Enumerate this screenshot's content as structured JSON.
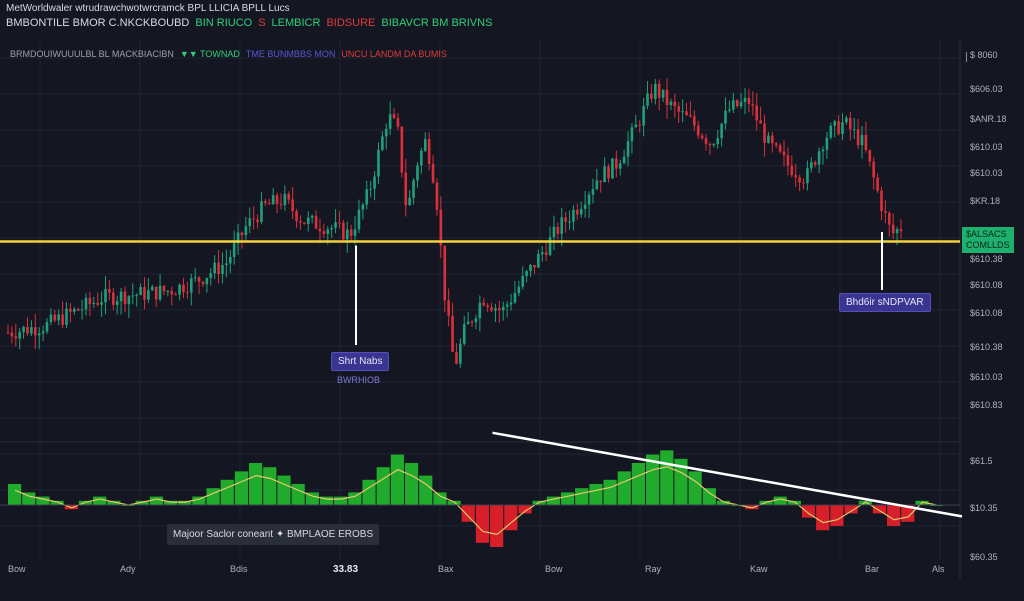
{
  "header": {
    "title": "MetWorldwaler wtrudrawchwotwrcramck BPL LLICIA BPLL Lucs",
    "subtitle_segments": [
      {
        "text": "BMBONTILE BMOR C.NKCKBOUBD",
        "color": "#d8dbe3"
      },
      {
        "text": "BIN RIUCO",
        "color": "#2fd07a"
      },
      {
        "text": "S",
        "color": "#e23b3b"
      },
      {
        "text": "LEMBICR",
        "color": "#2fd07a"
      },
      {
        "text": "BIDSURE",
        "color": "#e23b3b"
      },
      {
        "text": "BIBAVCR BM BRIVNS",
        "color": "#2fd07a"
      }
    ],
    "indicator_segments": [
      {
        "text": "BRMDOUIWUUULBL BL MACKBIACIBN",
        "color": "#9aa0ad"
      },
      {
        "text": "▼▼ TOWNAD",
        "color": "#2fd07a"
      },
      {
        "text": "TME BUNMBBS MON",
        "color": "#5a56d6"
      },
      {
        "text": "UNCU LANDM DA BUMIS",
        "color": "#e23b3b"
      }
    ]
  },
  "y_axis_labels": [
    "$ 8060",
    "$606.03",
    "$ANR.18",
    "$610.03",
    "$610.03",
    "$KR.18",
    "$610.38",
    "$610.08",
    "$610.08",
    "$610.38",
    "$610.03",
    "$610.83",
    "$61.5",
    "$10.35",
    "$60.35"
  ],
  "x_axis_labels": [
    {
      "text": "Bow",
      "emph": false
    },
    {
      "text": "Ady",
      "emph": false
    },
    {
      "text": "Bdis",
      "emph": false
    },
    {
      "text": "33.83",
      "emph": true
    },
    {
      "text": "Bax",
      "emph": false
    },
    {
      "text": "Bow",
      "emph": false
    },
    {
      "text": "Ray",
      "emph": false
    },
    {
      "text": "Kaw",
      "emph": false
    },
    {
      "text": "Bar",
      "emph": false
    },
    {
      "text": "Als",
      "emph": false
    }
  ],
  "annotations": {
    "left_callout": "Shrt Nabs",
    "left_callout_sub": "BWRHIOB",
    "right_callout": "Bhd6ir sNDPVAR",
    "price_tag_line1": "$ALSACS",
    "price_tag_line2": "COMLLDS",
    "oscillator_box": "Majoor Saclor coneant ✦ BMPLAOE EROBS"
  },
  "colors": {
    "background": "#141722",
    "bull": "#1fa07a",
    "bear": "#d9303c",
    "support_line": "#f1d23b",
    "histogram_positive": "#22b32e",
    "histogram_negative": "#e0202a",
    "trend_line": "#ffffff",
    "callout_bg": "#3a3590"
  },
  "chart_data": {
    "type": "candlestick",
    "price_series": [
      {
        "x": 0.0,
        "y": 610.3
      },
      {
        "x": 0.04,
        "y": 610.32
      },
      {
        "x": 0.07,
        "y": 610.36
      },
      {
        "x": 0.1,
        "y": 610.4
      },
      {
        "x": 0.14,
        "y": 610.41
      },
      {
        "x": 0.17,
        "y": 610.42
      },
      {
        "x": 0.2,
        "y": 610.45
      },
      {
        "x": 0.23,
        "y": 610.5
      },
      {
        "x": 0.25,
        "y": 610.6
      },
      {
        "x": 0.27,
        "y": 610.66
      },
      {
        "x": 0.29,
        "y": 610.68
      },
      {
        "x": 0.31,
        "y": 610.62
      },
      {
        "x": 0.34,
        "y": 610.6
      },
      {
        "x": 0.36,
        "y": 610.58
      },
      {
        "x": 0.38,
        "y": 610.7
      },
      {
        "x": 0.4,
        "y": 610.92
      },
      {
        "x": 0.41,
        "y": 610.88
      },
      {
        "x": 0.42,
        "y": 610.64
      },
      {
        "x": 0.43,
        "y": 610.78
      },
      {
        "x": 0.44,
        "y": 610.85
      },
      {
        "x": 0.45,
        "y": 610.72
      },
      {
        "x": 0.46,
        "y": 610.4
      },
      {
        "x": 0.47,
        "y": 610.2
      },
      {
        "x": 0.48,
        "y": 610.3
      },
      {
        "x": 0.5,
        "y": 610.4
      },
      {
        "x": 0.52,
        "y": 610.36
      },
      {
        "x": 0.54,
        "y": 610.44
      },
      {
        "x": 0.56,
        "y": 610.52
      },
      {
        "x": 0.58,
        "y": 610.6
      },
      {
        "x": 0.6,
        "y": 610.66
      },
      {
        "x": 0.62,
        "y": 610.74
      },
      {
        "x": 0.64,
        "y": 610.78
      },
      {
        "x": 0.66,
        "y": 610.88
      },
      {
        "x": 0.68,
        "y": 611.0
      },
      {
        "x": 0.7,
        "y": 610.94
      },
      {
        "x": 0.72,
        "y": 610.9
      },
      {
        "x": 0.74,
        "y": 610.84
      },
      {
        "x": 0.76,
        "y": 610.94
      },
      {
        "x": 0.78,
        "y": 610.96
      },
      {
        "x": 0.8,
        "y": 610.84
      },
      {
        "x": 0.82,
        "y": 610.78
      },
      {
        "x": 0.84,
        "y": 610.74
      },
      {
        "x": 0.86,
        "y": 610.86
      },
      {
        "x": 0.88,
        "y": 610.9
      },
      {
        "x": 0.9,
        "y": 610.84
      },
      {
        "x": 0.92,
        "y": 610.66
      },
      {
        "x": 0.93,
        "y": 610.58
      },
      {
        "x": 0.94,
        "y": 610.6
      }
    ],
    "support_level": 610.56,
    "oscillator": {
      "histogram": [
        0.5,
        0.3,
        0.2,
        0.1,
        -0.1,
        0.1,
        0.2,
        0.1,
        0.0,
        0.1,
        0.2,
        0.1,
        0.1,
        0.2,
        0.4,
        0.6,
        0.8,
        1.0,
        0.9,
        0.7,
        0.5,
        0.3,
        0.2,
        0.2,
        0.3,
        0.6,
        0.9,
        1.2,
        1.0,
        0.7,
        0.3,
        0.1,
        -0.4,
        -0.9,
        -1.0,
        -0.6,
        -0.2,
        0.1,
        0.2,
        0.3,
        0.4,
        0.5,
        0.6,
        0.8,
        1.0,
        1.2,
        1.3,
        1.1,
        0.8,
        0.4,
        0.1,
        0.0,
        -0.1,
        0.1,
        0.2,
        0.1,
        -0.3,
        -0.6,
        -0.5,
        -0.2,
        0.1,
        -0.2,
        -0.5,
        -0.4,
        0.1,
        0.0
      ],
      "trend_line": [
        {
          "x": 0.51,
          "y": 1.9
        },
        {
          "x": 0.94,
          "y": -0.3
        }
      ],
      "range": [
        -1.2,
        1.6
      ]
    }
  }
}
